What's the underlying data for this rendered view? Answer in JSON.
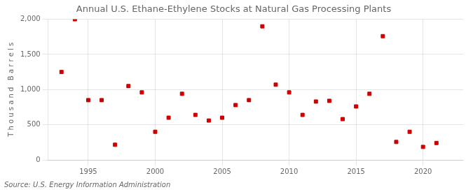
{
  "chart_data": {
    "type": "scatter",
    "title": "Annual U.S. Ethane-Ethylene Stocks at Natural Gas Processing Plants",
    "ylabel": "T h o u s a n d   B a r r e l s",
    "annotation": "Source: U.S. Energy Information Administration",
    "x": [
      1993,
      1994,
      1995,
      1996,
      1997,
      1998,
      1999,
      2000,
      2001,
      2002,
      2003,
      2004,
      2005,
      2006,
      2007,
      2008,
      2009,
      2010,
      2011,
      2012,
      2013,
      2014,
      2015,
      2016,
      2017,
      2018,
      2019,
      2020,
      2021
    ],
    "values": [
      1250,
      2000,
      850,
      850,
      215,
      1050,
      960,
      400,
      600,
      940,
      640,
      560,
      600,
      780,
      850,
      1900,
      1070,
      960,
      640,
      830,
      840,
      580,
      760,
      940,
      1760,
      255,
      400,
      185,
      240
    ],
    "color": "#cc0000",
    "marker": "square",
    "xlim": [
      1992,
      2023
    ],
    "xticks": [
      1995,
      2000,
      2005,
      2010,
      2015,
      2020
    ],
    "ylim": [
      0,
      2000
    ],
    "yticks": [
      0,
      500,
      {
        "value": 1000,
        "label": "1,000"
      },
      {
        "value": 1500,
        "label": "1,500"
      },
      {
        "value": 2000,
        "label": "2,000"
      }
    ],
    "grid": true
  }
}
